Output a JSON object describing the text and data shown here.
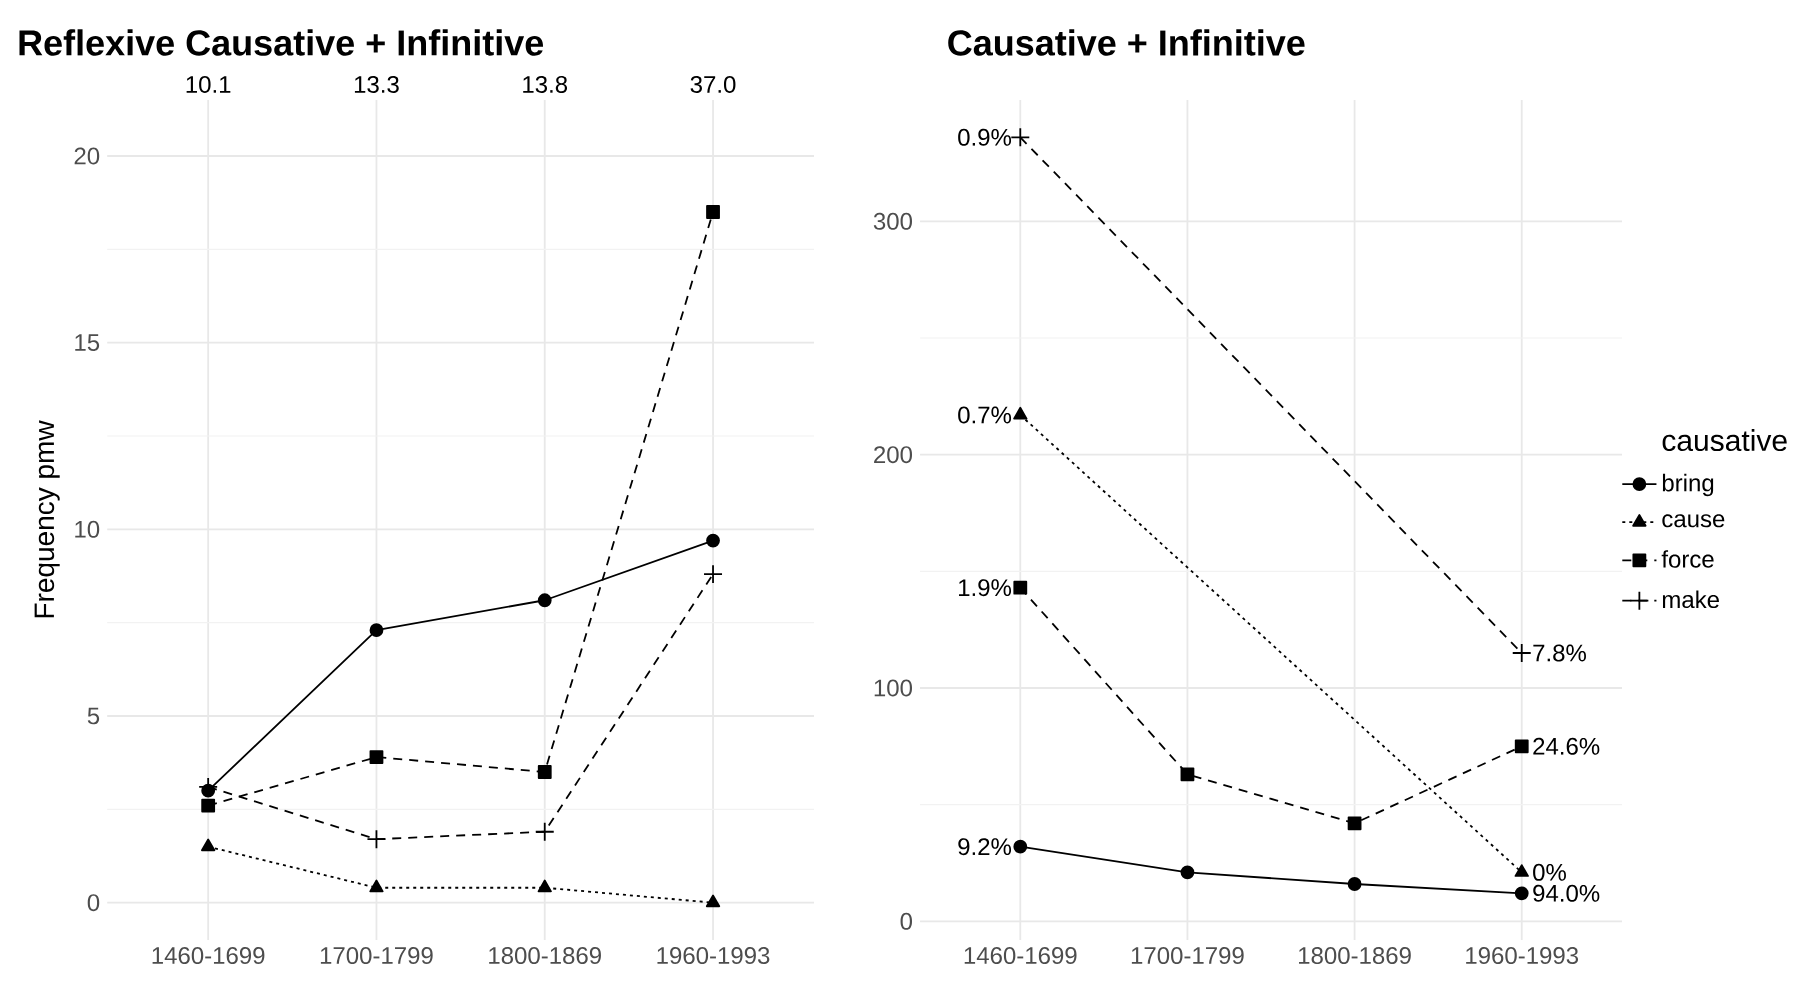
{
  "chart_data": [
    {
      "type": "line",
      "title": "Reflexive Causative + Infinitive",
      "ylabel": "Frequency pmw",
      "categories": [
        "1460-1699",
        "1700-1799",
        "1800-1869",
        "1960-1993"
      ],
      "ylim": [
        -1,
        21.5
      ],
      "yticks": [
        0,
        5,
        10,
        15,
        20
      ],
      "grid": true,
      "legend": false,
      "annotations": [
        "10.1",
        "13.3",
        "13.8",
        "37.0"
      ],
      "series": [
        {
          "color": "#000000",
          "marker": "circle",
          "line_style": "solid",
          "values": [
            3.0,
            7.3,
            8.1,
            9.7
          ]
        },
        {
          "color": "#000000",
          "marker": "triangle",
          "line_style": "dotted",
          "values": [
            1.5,
            0.4,
            0.4,
            0.0
          ]
        },
        {
          "color": "#000000",
          "marker": "square",
          "line_style": "dashed",
          "values": [
            2.6,
            3.9,
            3.5,
            18.5
          ]
        },
        {
          "color": "#000000",
          "marker": "cross",
          "line_style": "dashed",
          "values": [
            3.1,
            1.7,
            1.9,
            8.8
          ]
        }
      ]
    },
    {
      "type": "line",
      "title": "Causative + Infinitive",
      "legend_title": "causative",
      "categories": [
        "1460-1699",
        "1700-1799",
        "1800-1869",
        "1960-1993"
      ],
      "ylim": [
        -8,
        352
      ],
      "yticks": [
        0,
        100,
        200,
        300
      ],
      "grid": true,
      "legend": "right",
      "annotations": [
        {
          "text": "9.2%",
          "x": "1460-1699",
          "y": 32
        },
        {
          "text": "94.0%",
          "x": "1960-1993",
          "y": 12
        },
        {
          "text": "0.7%",
          "x": "1460-1699",
          "y": 217
        },
        {
          "text": "0%",
          "x": "1960-1993",
          "y": 21
        },
        {
          "text": "1.9%",
          "x": "1460-1699",
          "y": 143
        },
        {
          "text": "24.6%",
          "x": "1960-1993",
          "y": 75
        },
        {
          "text": "0.9%",
          "x": "1460-1699",
          "y": 336
        },
        {
          "text": "7.8%",
          "x": "1960-1993",
          "y": 115
        }
      ],
      "series": [
        {
          "name": "bring",
          "color": "#000000",
          "marker": "circle",
          "line_style": "solid",
          "values": [
            32,
            21,
            16,
            12
          ]
        },
        {
          "name": "cause",
          "color": "#000000",
          "marker": "triangle",
          "line_style": "dotted",
          "values": [
            217,
            null,
            null,
            21
          ]
        },
        {
          "name": "force",
          "color": "#000000",
          "marker": "square",
          "line_style": "dashed",
          "values": [
            143,
            63,
            42,
            75
          ]
        },
        {
          "name": "make",
          "color": "#000000",
          "marker": "cross",
          "line_style": "dashed",
          "values": [
            336,
            null,
            null,
            115
          ]
        }
      ]
    }
  ]
}
